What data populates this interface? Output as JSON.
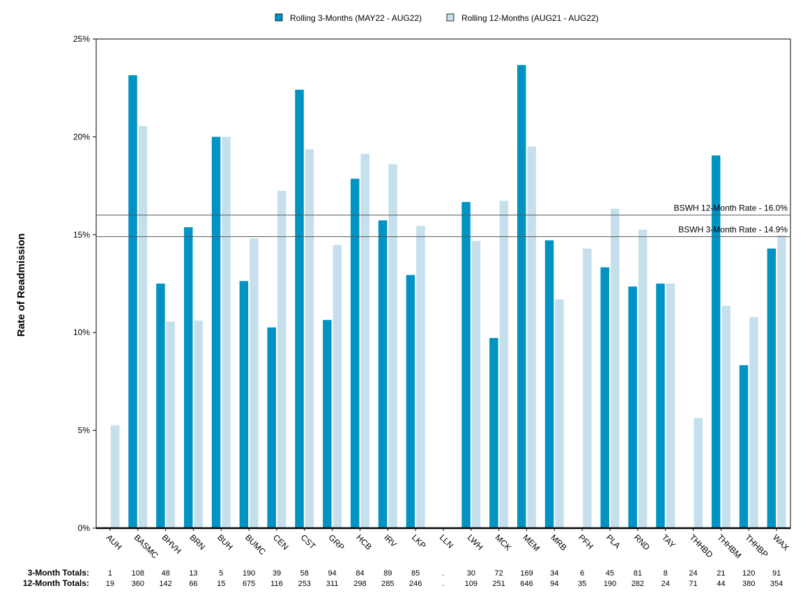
{
  "chart_data": {
    "type": "bar",
    "ylabel": "Rate of Readmission",
    "ylim": [
      0,
      25
    ],
    "yticks": [
      0,
      5,
      10,
      15,
      20,
      25
    ],
    "ytick_labels": [
      "0%",
      "5%",
      "10%",
      "15%",
      "20%",
      "25%"
    ],
    "grid": false,
    "legend_position": "top-center",
    "categories": [
      "AUH",
      "BASMC",
      "BHVH",
      "BRN",
      "BUH",
      "BUMC",
      "CEN",
      "CST",
      "GRP",
      "HCB",
      "IRV",
      "LKP",
      "LLN",
      "LWH",
      "MCK",
      "MEM",
      "MRB",
      "PFH",
      "PLA",
      "RND",
      "TAY",
      "THHBD",
      "THHBM",
      "THHBP",
      "WAX"
    ],
    "series": [
      {
        "name": "Rolling 3-Months (MAY22 - AUG22)",
        "color": "#0093c4",
        "values": [
          0,
          23.15,
          12.5,
          15.38,
          20.0,
          12.63,
          10.26,
          22.41,
          10.64,
          17.86,
          15.73,
          12.94,
          null,
          16.67,
          9.72,
          23.67,
          14.71,
          0,
          13.33,
          12.35,
          12.5,
          0,
          19.05,
          8.33,
          14.29
        ]
      },
      {
        "name": "Rolling 12-Months (AUG21 - AUG22)",
        "color": "#c5e0ec",
        "values": [
          5.26,
          20.56,
          10.56,
          10.61,
          20.0,
          14.81,
          17.24,
          19.37,
          14.47,
          19.13,
          18.6,
          15.45,
          null,
          14.68,
          16.73,
          19.5,
          11.7,
          14.29,
          16.32,
          15.25,
          12.5,
          5.63,
          11.36,
          10.79,
          14.97
        ]
      }
    ],
    "reference_lines": [
      {
        "value": 16.0,
        "label": "BSWH 12-Month Rate - 16.0%"
      },
      {
        "value": 14.9,
        "label": "BSWH  3-Month Rate - 14.9%"
      }
    ],
    "totals": [
      {
        "label": "3-Month Totals:",
        "values": [
          "1",
          "108",
          "48",
          "13",
          "5",
          "190",
          "39",
          "58",
          "94",
          "84",
          "89",
          "85",
          ".",
          "30",
          "72",
          "169",
          "34",
          "6",
          "45",
          "81",
          "8",
          "24",
          "21",
          "120",
          "91"
        ]
      },
      {
        "label": "12-Month Totals:",
        "values": [
          "19",
          "360",
          "142",
          "66",
          "15",
          "675",
          "116",
          "253",
          "311",
          "298",
          "285",
          "246",
          ".",
          "109",
          "251",
          "646",
          "94",
          "35",
          "190",
          "282",
          "24",
          "71",
          "44",
          "380",
          "354"
        ]
      }
    ]
  }
}
